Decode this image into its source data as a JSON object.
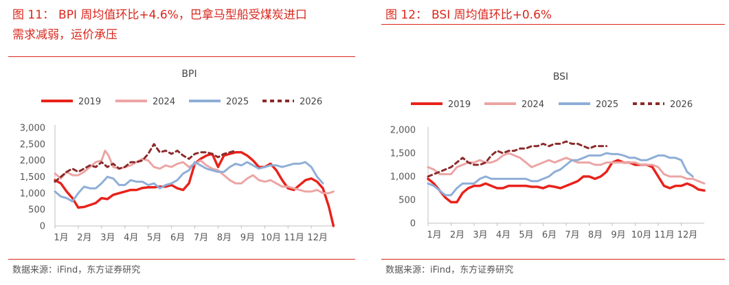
{
  "charts": [
    {
      "figure_number": "图 11：",
      "title_line1": "BPI 周均值环比+4.6%，巴拿马型船受煤炭进口",
      "title_line2": "需求减弱，运价承压",
      "source": "数据来源：iFind，东方证券研究",
      "chart_data": {
        "type": "line",
        "title": "BPI",
        "x_ticks": [
          "1月",
          "2月",
          "3月",
          "4月",
          "5月",
          "6月",
          "7月",
          "8月",
          "9月",
          "10月",
          "11月",
          "12月"
        ],
        "y_ticks": [
          "0",
          "500",
          "1,000",
          "1,500",
          "2,000",
          "2,500",
          "3,000"
        ],
        "ylim": [
          0,
          3000
        ],
        "xlim": [
          1,
          13
        ],
        "grid": false,
        "legend": "top",
        "series": [
          {
            "name": "2019",
            "color": "#e8221b",
            "dash": "",
            "x": [
              1.0,
              1.25,
              1.5,
              1.75,
              2.0,
              2.25,
              2.5,
              2.75,
              3.0,
              3.25,
              3.5,
              3.75,
              4.0,
              4.25,
              4.5,
              4.75,
              5.0,
              5.25,
              5.5,
              5.75,
              6.0,
              6.25,
              6.5,
              6.75,
              7.0,
              7.25,
              7.5,
              7.75,
              8.0,
              8.25,
              8.5,
              8.75,
              9.0,
              9.25,
              9.5,
              9.75,
              10.0,
              10.25,
              10.5,
              10.75,
              11.0,
              11.25,
              11.5,
              11.75,
              12.0,
              12.25,
              12.5,
              12.75,
              12.95
            ],
            "values": [
              1400,
              1300,
              1050,
              850,
              560,
              580,
              640,
              700,
              850,
              820,
              950,
              1000,
              1050,
              1100,
              1100,
              1160,
              1180,
              1180,
              1200,
              1200,
              1250,
              1150,
              1100,
              1300,
              1900,
              2050,
              2150,
              2200,
              1800,
              2150,
              2200,
              2250,
              2250,
              2150,
              2000,
              1800,
              1800,
              1900,
              1700,
              1400,
              1150,
              1100,
              1250,
              1400,
              1450,
              1350,
              1150,
              600,
              0
            ]
          },
          {
            "name": "2024",
            "color": "#eba5a4",
            "dash": "",
            "x": [
              1.0,
              1.25,
              1.5,
              1.75,
              2.0,
              2.25,
              2.5,
              2.75,
              3.0,
              3.15,
              3.3,
              3.5,
              3.75,
              4.0,
              4.25,
              4.5,
              4.75,
              5.0,
              5.25,
              5.5,
              5.75,
              6.0,
              6.25,
              6.5,
              6.75,
              7.0,
              7.25,
              7.5,
              7.75,
              8.0,
              8.25,
              8.5,
              8.75,
              9.0,
              9.25,
              9.5,
              9.75,
              10.0,
              10.25,
              10.5,
              10.75,
              11.0,
              11.25,
              11.5,
              11.75,
              12.0,
              12.25,
              12.5,
              12.75,
              12.95
            ],
            "values": [
              1600,
              1450,
              1650,
              1550,
              1550,
              1650,
              1800,
              1950,
              2000,
              2300,
              2150,
              1800,
              1750,
              1800,
              1850,
              1950,
              2050,
              2000,
              1800,
              1750,
              1850,
              1800,
              1900,
              1950,
              1800,
              1900,
              2000,
              1850,
              1750,
              1700,
              1550,
              1400,
              1300,
              1300,
              1450,
              1550,
              1400,
              1350,
              1400,
              1300,
              1200,
              1200,
              1150,
              1100,
              1050,
              1050,
              1100,
              1000,
              1000,
              1050
            ]
          },
          {
            "name": "2025",
            "color": "#8eaed7",
            "dash": "",
            "x": [
              1.0,
              1.25,
              1.5,
              1.75,
              2.0,
              2.25,
              2.5,
              2.75,
              3.0,
              3.25,
              3.5,
              3.75,
              4.0,
              4.25,
              4.5,
              4.75,
              5.0,
              5.25,
              5.5,
              5.75,
              6.0,
              6.25,
              6.5,
              6.75,
              7.0,
              7.25,
              7.5,
              7.75,
              8.0,
              8.25,
              8.5,
              8.75,
              9.0,
              9.25,
              9.5,
              9.75,
              10.0,
              10.25,
              10.5,
              10.75,
              11.0,
              11.25,
              11.5,
              11.75,
              12.0,
              12.25,
              12.5
            ],
            "values": [
              1050,
              900,
              850,
              750,
              1000,
              1200,
              1150,
              1150,
              1300,
              1500,
              1450,
              1250,
              1250,
              1400,
              1350,
              1350,
              1250,
              1300,
              1150,
              1250,
              1300,
              1400,
              1600,
              1700,
              1950,
              1850,
              1750,
              1700,
              1650,
              1650,
              1800,
              1900,
              1850,
              1950,
              1850,
              1750,
              1800,
              1850,
              1850,
              1800,
              1850,
              1900,
              1900,
              1950,
              1800,
              1500,
              1300
            ]
          },
          {
            "name": "2026",
            "color": "#8b2a2a",
            "dash": "6 5",
            "x": [
              1.0,
              1.25,
              1.5,
              1.75,
              2.0,
              2.25,
              2.5,
              2.75,
              3.0,
              3.25,
              3.5,
              3.75,
              4.0,
              4.25,
              4.5,
              4.75,
              5.0,
              5.25,
              5.5,
              5.75,
              6.0,
              6.25,
              6.5,
              6.75,
              7.0,
              7.25,
              7.5,
              7.75,
              8.0,
              8.25,
              8.5,
              8.75
            ],
            "values": [
              1350,
              1500,
              1650,
              1750,
              1650,
              1750,
              1850,
              1800,
              1950,
              1800,
              1900,
              1750,
              1800,
              1950,
              1950,
              2000,
              2200,
              2500,
              2250,
              2300,
              2200,
              2300,
              2150,
              2050,
              2200,
              2250,
              2250,
              2200,
              2100,
              2200,
              2250,
              2300
            ]
          }
        ]
      }
    },
    {
      "figure_number": "图 12：",
      "title_line1": "BSI 周均值环比+0.6%",
      "title_line2": "",
      "source": "数据来源：iFind，东方证券研究",
      "chart_data": {
        "type": "line",
        "title": "BSI",
        "x_ticks": [
          "1月",
          "2月",
          "3月",
          "4月",
          "5月",
          "6月",
          "7月",
          "8月",
          "9月",
          "10月",
          "11月",
          "12月"
        ],
        "y_ticks": [
          "0",
          "500",
          "1,000",
          "1,500",
          "2,000"
        ],
        "ylim": [
          0,
          2000
        ],
        "xlim": [
          1,
          13
        ],
        "grid": false,
        "legend": "top",
        "series": [
          {
            "name": "2019",
            "color": "#e8221b",
            "dash": "",
            "x": [
              1.0,
              1.25,
              1.5,
              1.75,
              2.0,
              2.25,
              2.5,
              2.75,
              3.0,
              3.25,
              3.5,
              3.75,
              4.0,
              4.25,
              4.5,
              4.75,
              5.0,
              5.25,
              5.5,
              5.75,
              6.0,
              6.25,
              6.5,
              6.75,
              7.0,
              7.25,
              7.5,
              7.75,
              8.0,
              8.25,
              8.5,
              8.75,
              9.0,
              9.25,
              9.5,
              9.75,
              10.0,
              10.25,
              10.5,
              10.75,
              11.0,
              11.25,
              11.5,
              11.75,
              12.0,
              12.25,
              12.5,
              12.75,
              13.0
            ],
            "values": [
              950,
              850,
              700,
              550,
              450,
              450,
              650,
              750,
              800,
              800,
              850,
              800,
              750,
              750,
              800,
              800,
              800,
              800,
              780,
              780,
              750,
              800,
              780,
              750,
              800,
              850,
              900,
              1000,
              1000,
              950,
              1000,
              1100,
              1300,
              1350,
              1300,
              1300,
              1250,
              1250,
              1250,
              1200,
              1000,
              800,
              750,
              800,
              800,
              850,
              800,
              720,
              700
            ]
          },
          {
            "name": "2024",
            "color": "#eba5a4",
            "dash": "",
            "x": [
              1.0,
              1.25,
              1.5,
              1.75,
              2.0,
              2.25,
              2.5,
              2.75,
              3.0,
              3.25,
              3.5,
              3.75,
              4.0,
              4.25,
              4.5,
              4.75,
              5.0,
              5.25,
              5.5,
              5.75,
              6.0,
              6.25,
              6.5,
              6.75,
              7.0,
              7.25,
              7.5,
              7.75,
              8.0,
              8.25,
              8.5,
              8.75,
              9.0,
              9.25,
              9.5,
              9.75,
              10.0,
              10.25,
              10.5,
              10.75,
              11.0,
              11.25,
              11.5,
              11.75,
              12.0,
              12.25,
              12.5,
              12.75,
              13.0
            ],
            "values": [
              1200,
              1150,
              1050,
              1050,
              1050,
              1200,
              1250,
              1300,
              1300,
              1350,
              1300,
              1300,
              1350,
              1450,
              1500,
              1450,
              1400,
              1300,
              1200,
              1250,
              1300,
              1350,
              1300,
              1350,
              1400,
              1350,
              1300,
              1300,
              1300,
              1250,
              1250,
              1300,
              1300,
              1300,
              1300,
              1300,
              1300,
              1250,
              1250,
              1250,
              1200,
              1050,
              1000,
              1000,
              1000,
              950,
              950,
              900,
              850
            ]
          },
          {
            "name": "2025",
            "color": "#8eaed7",
            "dash": "",
            "x": [
              1.0,
              1.25,
              1.5,
              1.75,
              2.0,
              2.25,
              2.5,
              2.75,
              3.0,
              3.25,
              3.5,
              3.75,
              4.0,
              4.25,
              4.5,
              4.75,
              5.0,
              5.25,
              5.5,
              5.75,
              6.0,
              6.25,
              6.5,
              6.75,
              7.0,
              7.25,
              7.5,
              7.75,
              8.0,
              8.25,
              8.5,
              8.75,
              9.0,
              9.25,
              9.5,
              9.75,
              10.0,
              10.25,
              10.5,
              10.75,
              11.0,
              11.25,
              11.5,
              11.75,
              12.0,
              12.25,
              12.5
            ],
            "values": [
              850,
              800,
              700,
              600,
              600,
              750,
              850,
              850,
              850,
              950,
              1000,
              950,
              950,
              950,
              950,
              950,
              950,
              950,
              900,
              900,
              950,
              1000,
              1100,
              1150,
              1250,
              1350,
              1350,
              1400,
              1450,
              1450,
              1450,
              1500,
              1480,
              1480,
              1450,
              1400,
              1400,
              1350,
              1350,
              1400,
              1450,
              1450,
              1400,
              1400,
              1350,
              1100,
              1000
            ]
          },
          {
            "name": "2026",
            "color": "#8b2a2a",
            "dash": "6 5",
            "x": [
              1.0,
              1.25,
              1.5,
              1.75,
              2.0,
              2.25,
              2.5,
              2.75,
              3.0,
              3.25,
              3.5,
              3.75,
              4.0,
              4.25,
              4.5,
              4.75,
              5.0,
              5.25,
              5.5,
              5.75,
              6.0,
              6.25,
              6.5,
              6.75,
              7.0,
              7.25,
              7.5,
              7.75,
              8.0,
              8.25,
              8.5,
              8.75
            ],
            "values": [
              1000,
              1050,
              1100,
              1150,
              1200,
              1300,
              1400,
              1300,
              1250,
              1250,
              1300,
              1450,
              1550,
              1500,
              1550,
              1550,
              1600,
              1600,
              1650,
              1650,
              1700,
              1650,
              1700,
              1700,
              1750,
              1700,
              1700,
              1650,
              1600,
              1650,
              1650,
              1650
            ]
          }
        ]
      }
    }
  ]
}
